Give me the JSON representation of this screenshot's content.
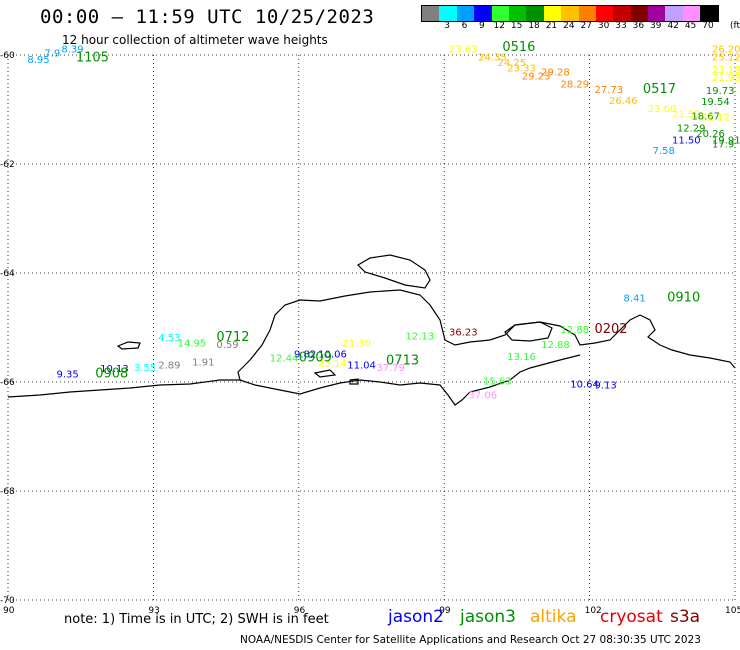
{
  "header": {
    "title": "00:00 – 11:59 UTC 10/25/2023",
    "subtitle": "12 hour collection of altimeter wave heights"
  },
  "color_scale": {
    "labels": [
      "3",
      "6",
      "9",
      "12",
      "15",
      "18",
      "21",
      "24",
      "27",
      "30",
      "33",
      "36",
      "39",
      "42",
      "45",
      "70"
    ],
    "unit": "(ft)",
    "colors": [
      "#808080",
      "#00ffff",
      "#00a0ff",
      "#0000ff",
      "#30ff30",
      "#00c000",
      "#009000",
      "#ffff00",
      "#ffc000",
      "#ff8000",
      "#ff0000",
      "#c00000",
      "#800000",
      "#a000a0",
      "#c0a0ff",
      "#ff90ff",
      "#000000"
    ]
  },
  "axes": {
    "x_ticks": [
      "90",
      "93",
      "96",
      "99",
      "102",
      "105"
    ],
    "y_ticks": [
      "-60",
      "-62",
      "-64",
      "-66",
      "-68",
      "-70"
    ]
  },
  "labels": [
    {
      "text": "8.39",
      "color": "#00a0ff",
      "lon": 91.1,
      "lat": -59.95
    },
    {
      "text": "7.9",
      "color": "#00a0ff",
      "lon": 90.75,
      "lat": -60.03
    },
    {
      "text": "8.95",
      "color": "#00a0ff",
      "lon": 90.4,
      "lat": -60.15
    },
    {
      "text": "1105",
      "color": "#009000",
      "lon": 91.4,
      "lat": -60.12,
      "big": true
    },
    {
      "text": "23.63",
      "color": "#ffff00",
      "lon": 99.1,
      "lat": -59.95
    },
    {
      "text": "0516",
      "color": "#009000",
      "lon": 100.2,
      "lat": -59.93,
      "big": true
    },
    {
      "text": "24.35",
      "color": "#ffc000",
      "lon": 99.7,
      "lat": -60.1
    },
    {
      "text": "24.25",
      "color": "#ffc000",
      "lon": 100.1,
      "lat": -60.2
    },
    {
      "text": "23.33",
      "color": "#ffc000",
      "lon": 100.3,
      "lat": -60.3
    },
    {
      "text": "29.28",
      "color": "#ff8000",
      "lon": 101.0,
      "lat": -60.38
    },
    {
      "text": "29.23",
      "color": "#ff8000",
      "lon": 100.6,
      "lat": -60.45
    },
    {
      "text": "28.29",
      "color": "#ff8000",
      "lon": 101.4,
      "lat": -60.6
    },
    {
      "text": "27.73",
      "color": "#ff8000",
      "lon": 102.1,
      "lat": -60.7
    },
    {
      "text": "0517",
      "color": "#009000",
      "lon": 103.1,
      "lat": -60.7,
      "big": true
    },
    {
      "text": "26.46",
      "color": "#ffc000",
      "lon": 102.4,
      "lat": -60.9
    },
    {
      "text": "23.60",
      "color": "#ffff00",
      "lon": 103.2,
      "lat": -61.05
    },
    {
      "text": "21.52",
      "color": "#ffff00",
      "lon": 103.7,
      "lat": -61.15
    },
    {
      "text": "18.67",
      "color": "#009000",
      "lon": 104.1,
      "lat": -61.18
    },
    {
      "text": "22.12",
      "color": "#ffff00",
      "lon": 104.3,
      "lat": -61.2
    },
    {
      "text": "26.20",
      "color": "#ffc000",
      "lon": 105.2,
      "lat": -59.95
    },
    {
      "text": "25.12",
      "color": "#ffc000",
      "lon": 105.2,
      "lat": -60.1
    },
    {
      "text": "23.18",
      "color": "#ffff00",
      "lon": 105.1,
      "lat": -60.33
    },
    {
      "text": "21.93",
      "color": "#ffff00",
      "lon": 104.9,
      "lat": -60.48
    },
    {
      "text": "19.73",
      "color": "#009000",
      "lon": 104.4,
      "lat": -60.72
    },
    {
      "text": "19.54",
      "color": "#009000",
      "lon": 104.3,
      "lat": -60.92
    },
    {
      "text": "12.29",
      "color": "#009000",
      "lon": 103.8,
      "lat": -61.4
    },
    {
      "text": "20.26",
      "color": "#009000",
      "lon": 104.2,
      "lat": -61.5
    },
    {
      "text": "11.50",
      "color": "#0000ff",
      "lon": 103.7,
      "lat": -61.62
    },
    {
      "text": "19.91",
      "color": "#009000",
      "lon": 104.6,
      "lat": -61.62
    },
    {
      "text": "17.9",
      "color": "#009000",
      "lon": 105.1,
      "lat": -61.7
    },
    {
      "text": "7.58",
      "color": "#00a0ff",
      "lon": 103.3,
      "lat": -61.82
    },
    {
      "text": "8.41",
      "color": "#00a0ff",
      "lon": 102.7,
      "lat": -64.52
    },
    {
      "text": "0910",
      "color": "#009000",
      "lon": 103.6,
      "lat": -64.52,
      "big": true
    },
    {
      "text": "36.23",
      "color": "#800000",
      "lon": 99.1,
      "lat": -65.15
    },
    {
      "text": "12.13",
      "color": "#30ff30",
      "lon": 98.2,
      "lat": -65.22
    },
    {
      "text": "12.88",
      "color": "#30ff30",
      "lon": 101.4,
      "lat": -65.1
    },
    {
      "text": "0202",
      "color": "#800000",
      "lon": 102.1,
      "lat": -65.1,
      "big": true
    },
    {
      "text": "12.88",
      "color": "#30ff30",
      "lon": 101.0,
      "lat": -65.38
    },
    {
      "text": "13.16",
      "color": "#30ff30",
      "lon": 100.3,
      "lat": -65.6
    },
    {
      "text": "15.63",
      "color": "#30ff30",
      "lon": 99.8,
      "lat": -66.05
    },
    {
      "text": "10.64",
      "color": "#0000ff",
      "lon": 101.6,
      "lat": -66.1
    },
    {
      "text": "9.13",
      "color": "#0000ff",
      "lon": 102.1,
      "lat": -66.12
    },
    {
      "text": "37.06",
      "color": "#ff90ff",
      "lon": 99.5,
      "lat": -66.3
    },
    {
      "text": "21.30",
      "color": "#ffff00",
      "lon": 96.9,
      "lat": -65.35
    },
    {
      "text": "23.14",
      "color": "#ffff00",
      "lon": 96.4,
      "lat": -65.72
    },
    {
      "text": "11.04",
      "color": "#0000ff",
      "lon": 97.0,
      "lat": -65.75
    },
    {
      "text": "0713",
      "color": "#009000",
      "lon": 97.8,
      "lat": -65.68,
      "big": true
    },
    {
      "text": "37.79",
      "color": "#ff90ff",
      "lon": 97.6,
      "lat": -65.8
    },
    {
      "text": "4.53",
      "color": "#00ffff",
      "lon": 93.1,
      "lat": -65.25
    },
    {
      "text": "14.95",
      "color": "#30ff30",
      "lon": 93.5,
      "lat": -65.35
    },
    {
      "text": "0712",
      "color": "#009000",
      "lon": 94.3,
      "lat": -65.25,
      "big": true
    },
    {
      "text": "0.59",
      "color": "#808080",
      "lon": 94.3,
      "lat": -65.38
    },
    {
      "text": "1.91",
      "color": "#808080",
      "lon": 93.8,
      "lat": -65.7
    },
    {
      "text": "2.89",
      "color": "#808080",
      "lon": 93.1,
      "lat": -65.75
    },
    {
      "text": "3.55",
      "color": "#00ffff",
      "lon": 92.6,
      "lat": -65.8
    },
    {
      "text": "10.13",
      "color": "#0000ff",
      "lon": 91.9,
      "lat": -65.82
    },
    {
      "text": "9.35",
      "color": "#0000ff",
      "lon": 91.0,
      "lat": -65.92
    },
    {
      "text": "0908",
      "color": "#009000",
      "lon": 91.8,
      "lat": -65.92,
      "big": true
    },
    {
      "text": "12.44",
      "color": "#30ff30",
      "lon": 95.4,
      "lat": -65.62
    },
    {
      "text": "9.82",
      "color": "#0000ff",
      "lon": 95.9,
      "lat": -65.55
    },
    {
      "text": "10.06",
      "color": "#0000ff",
      "lon": 96.4,
      "lat": -65.55
    },
    {
      "text": "0909",
      "color": "#009000",
      "lon": 96.0,
      "lat": -65.62,
      "big": true
    }
  ],
  "footer": {
    "note": "note: 1) Time is in UTC; 2) SWH is in feet",
    "credit": "NOAA/NESDIS Center for Satellite Applications and Research    Oct 27 08:30:35 UTC 2023",
    "satellites": [
      {
        "name": "jason2",
        "color": "#0000ff"
      },
      {
        "name": "jason3",
        "color": "#009000"
      },
      {
        "name": "altika",
        "color": "#ffa000"
      },
      {
        "name": "cryosat",
        "color": "#e00000"
      },
      {
        "name": "s3a",
        "color": "#800000"
      }
    ]
  }
}
